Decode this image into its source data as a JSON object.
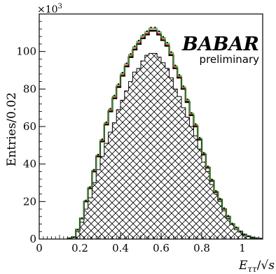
{
  "chart_data": {
    "type": "histogram",
    "ylabel": "Entries/0.02",
    "xlabel_parts": {
      "E": "E",
      "sub": "ττ",
      "slash": "/",
      "root": "√",
      "s": "s"
    },
    "y_exponent": "×10",
    "y_exponent_power": "3",
    "annotation_brand": "BABAR",
    "annotation_status": "preliminary",
    "xlim": [
      0,
      1.1
    ],
    "ylim": [
      0,
      120
    ],
    "x_ticks": [
      0,
      0.2,
      0.4,
      0.6,
      0.8,
      1
    ],
    "x_tick_labels": [
      "0",
      "0.2",
      "0.4",
      "0.6",
      "0.8",
      "1"
    ],
    "y_ticks": [
      0,
      20,
      40,
      60,
      80,
      100
    ],
    "y_tick_labels": [
      "0",
      "20",
      "40",
      "60",
      "80",
      "100"
    ],
    "bin_width": 0.02,
    "bin_edges_start": 0.14,
    "series": [
      {
        "name": "",
        "style": "hatched",
        "color": "#000000",
        "values": [
          0.3,
          0.8,
          4,
          9,
          16,
          22,
          30,
          37,
          44,
          51,
          57,
          62,
          69,
          74,
          79,
          84,
          89,
          91,
          95,
          98,
          99,
          99,
          97,
          94,
          91,
          86,
          80,
          76,
          70,
          65,
          60,
          55,
          48,
          41,
          36,
          29,
          24,
          20,
          15,
          11,
          8,
          5,
          4,
          2,
          1.3,
          0.7,
          0.4,
          0.2
        ]
      },
      {
        "name": "",
        "style": "step",
        "color": "#000000",
        "values": [
          0.4,
          1,
          5,
          11,
          20,
          27,
          36,
          44,
          52,
          61,
          68,
          75,
          81,
          87,
          92,
          97,
          101,
          104,
          107,
          109,
          111,
          111,
          109,
          106,
          103,
          98,
          91,
          86,
          80,
          73,
          66,
          60,
          53,
          45,
          38,
          31,
          25,
          21,
          16,
          12,
          8,
          6,
          4,
          2.4,
          1.5,
          0.8,
          0.4,
          0.2
        ]
      },
      {
        "name": "",
        "style": "step",
        "color": "#e81010",
        "values": [
          0.4,
          1,
          5,
          11,
          20.3,
          27.3,
          36.4,
          44.4,
          52.5,
          61.5,
          68.6,
          75.6,
          81.6,
          87.7,
          92.7,
          97.7,
          101.8,
          104.8,
          107.8,
          109.8,
          111.8,
          111.8,
          109.8,
          106.8,
          103.7,
          98.7,
          91.7,
          86.6,
          80.6,
          73.6,
          66.5,
          60.5,
          53.4,
          45.4,
          38.3,
          31.3,
          25.2,
          21.2,
          16.1,
          12.1,
          8.1,
          6,
          4,
          2.4,
          1.5,
          0.8,
          0.4,
          0.2
        ]
      },
      {
        "name": "",
        "style": "step",
        "color": "#20b020",
        "values": [
          0.4,
          1,
          5,
          11,
          20.5,
          27.6,
          36.8,
          44.8,
          53,
          62,
          69.2,
          76.2,
          82.3,
          88.4,
          93.4,
          98.4,
          102.5,
          105.5,
          108.5,
          110.5,
          112.5,
          112.5,
          110.5,
          107.5,
          104.4,
          99.4,
          92.3,
          87.2,
          81.2,
          74.2,
          67,
          61,
          53.8,
          45.8,
          38.6,
          31.6,
          25.5,
          21.4,
          16.3,
          12.2,
          8.2,
          6.1,
          4,
          2.4,
          1.5,
          0.8,
          0.4,
          0.2
        ]
      },
      {
        "name": "",
        "style": "dots",
        "color": "#000000",
        "values": [
          0.4,
          1,
          5,
          11,
          20.6,
          27.8,
          37,
          45,
          53.2,
          62.3,
          69.5,
          76.5,
          82.6,
          88.7,
          93.7,
          98.7,
          102.8,
          105.8,
          108.8,
          110.8,
          112.8,
          112.8,
          110.8,
          107.8,
          104.7,
          99.7,
          92.6,
          87.5,
          81.5,
          74.5,
          67.3,
          61.3,
          54,
          46,
          38.8,
          31.8,
          25.7,
          21.6,
          16.5,
          12.4,
          8.3,
          6.2,
          4.1,
          2.5,
          1.5,
          0.8,
          0.4,
          0.2
        ]
      }
    ]
  }
}
